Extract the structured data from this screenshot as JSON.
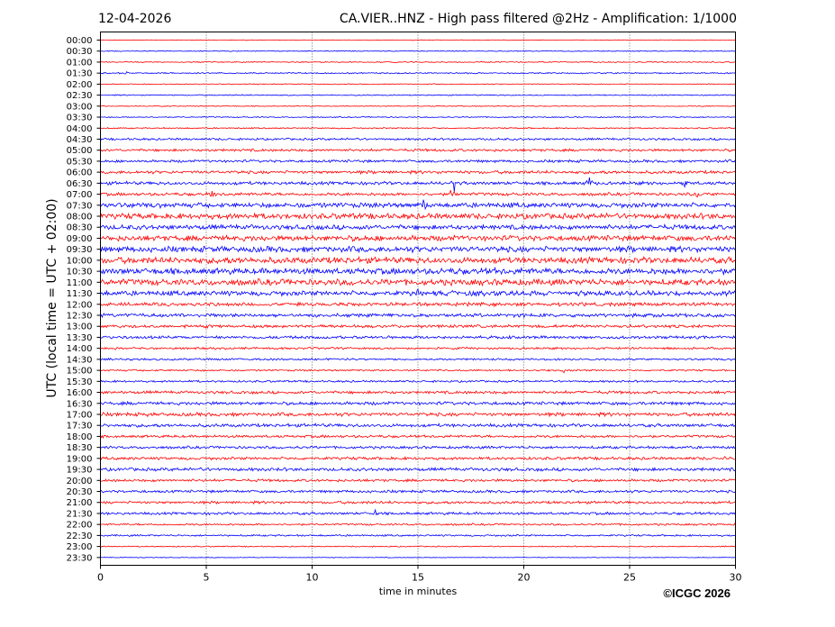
{
  "header": {
    "date": "12-04-2026",
    "title": "CA.VIER..HNZ - High pass filtered @2Hz - Amplification: 1/1000"
  },
  "footer": {
    "credit": "©ICGC 2026"
  },
  "chart_data": {
    "type": "line",
    "title": "CA.VIER..HNZ - High pass filtered @2Hz - Amplification: 1/1000",
    "xlabel": "time in minutes",
    "ylabel": "UTC (local time = UTC + 02:00)",
    "xlim": [
      0,
      30
    ],
    "x_ticks": [
      0,
      5,
      10,
      15,
      20,
      25,
      30
    ],
    "x_tick_labels": [
      "0",
      "5",
      "10",
      "15",
      "20",
      "25",
      "30"
    ],
    "grid": "vertical dotted",
    "colors": {
      "red": "#ff0000",
      "blue": "#0000ff",
      "grid": "#000000"
    },
    "rows": [
      "00:00",
      "00:30",
      "01:00",
      "01:30",
      "02:00",
      "02:30",
      "03:00",
      "03:30",
      "04:00",
      "04:30",
      "05:00",
      "05:30",
      "06:00",
      "06:30",
      "07:00",
      "07:30",
      "08:00",
      "08:30",
      "09:00",
      "09:30",
      "10:00",
      "10:30",
      "11:00",
      "11:30",
      "12:00",
      "12:30",
      "13:00",
      "13:30",
      "14:00",
      "14:30",
      "15:00",
      "15:30",
      "16:00",
      "16:30",
      "17:00",
      "17:30",
      "18:00",
      "18:30",
      "19:00",
      "19:30",
      "20:00",
      "20:30",
      "21:00",
      "21:30",
      "22:00",
      "22:30",
      "23:00",
      "23:30"
    ],
    "row_colors": [
      "red",
      "blue",
      "red",
      "blue",
      "red",
      "blue",
      "red",
      "blue",
      "red",
      "blue",
      "red",
      "blue",
      "red",
      "blue",
      "red",
      "blue",
      "red",
      "blue",
      "red",
      "blue",
      "red",
      "blue",
      "red",
      "blue",
      "red",
      "blue",
      "red",
      "blue",
      "red",
      "blue",
      "red",
      "blue",
      "red",
      "blue",
      "red",
      "blue",
      "red",
      "blue",
      "red",
      "blue",
      "red",
      "blue",
      "red",
      "blue",
      "red",
      "blue",
      "red",
      "blue"
    ],
    "noise_amplitude": [
      0.3,
      0.4,
      0.5,
      0.6,
      0.4,
      0.5,
      0.4,
      0.5,
      0.6,
      1.0,
      1.2,
      1.2,
      1.4,
      1.5,
      1.4,
      2.2,
      2.5,
      2.2,
      2.5,
      2.6,
      2.8,
      2.8,
      2.8,
      2.2,
      1.6,
      1.6,
      1.4,
      1.3,
      1.0,
      0.9,
      0.8,
      0.9,
      1.3,
      1.5,
      1.6,
      1.5,
      1.2,
      1.2,
      1.3,
      1.5,
      1.2,
      1.2,
      1.2,
      1.2,
      0.9,
      0.8,
      0.5,
      0.3
    ],
    "events": [
      {
        "row": "01:30",
        "minute": 1.2,
        "amplitude": 3
      },
      {
        "row": "06:30",
        "minute": 16.7,
        "amplitude": 12
      },
      {
        "row": "06:30",
        "minute": 23.1,
        "amplitude": 11
      },
      {
        "row": "06:30",
        "minute": 27.6,
        "amplitude": 5
      },
      {
        "row": "07:00",
        "minute": 5.3,
        "amplitude": 8
      },
      {
        "row": "07:00",
        "minute": 16.6,
        "amplitude": 9
      },
      {
        "row": "07:00",
        "minute": 28.2,
        "amplitude": 9
      },
      {
        "row": "07:30",
        "minute": 15.3,
        "amplitude": 10
      },
      {
        "row": "11:30",
        "minute": 15.0,
        "amplitude": 5
      },
      {
        "row": "11:30",
        "minute": 17.8,
        "amplitude": 4
      },
      {
        "row": "11:30",
        "minute": 20.3,
        "amplitude": 4
      },
      {
        "row": "15:00",
        "minute": 21.9,
        "amplitude": 3
      },
      {
        "row": "17:00",
        "minute": 2.2,
        "amplitude": 5
      },
      {
        "row": "19:00",
        "minute": 29.5,
        "amplitude": 3
      },
      {
        "row": "21:30",
        "minute": 13.0,
        "amplitude": 3
      }
    ]
  }
}
